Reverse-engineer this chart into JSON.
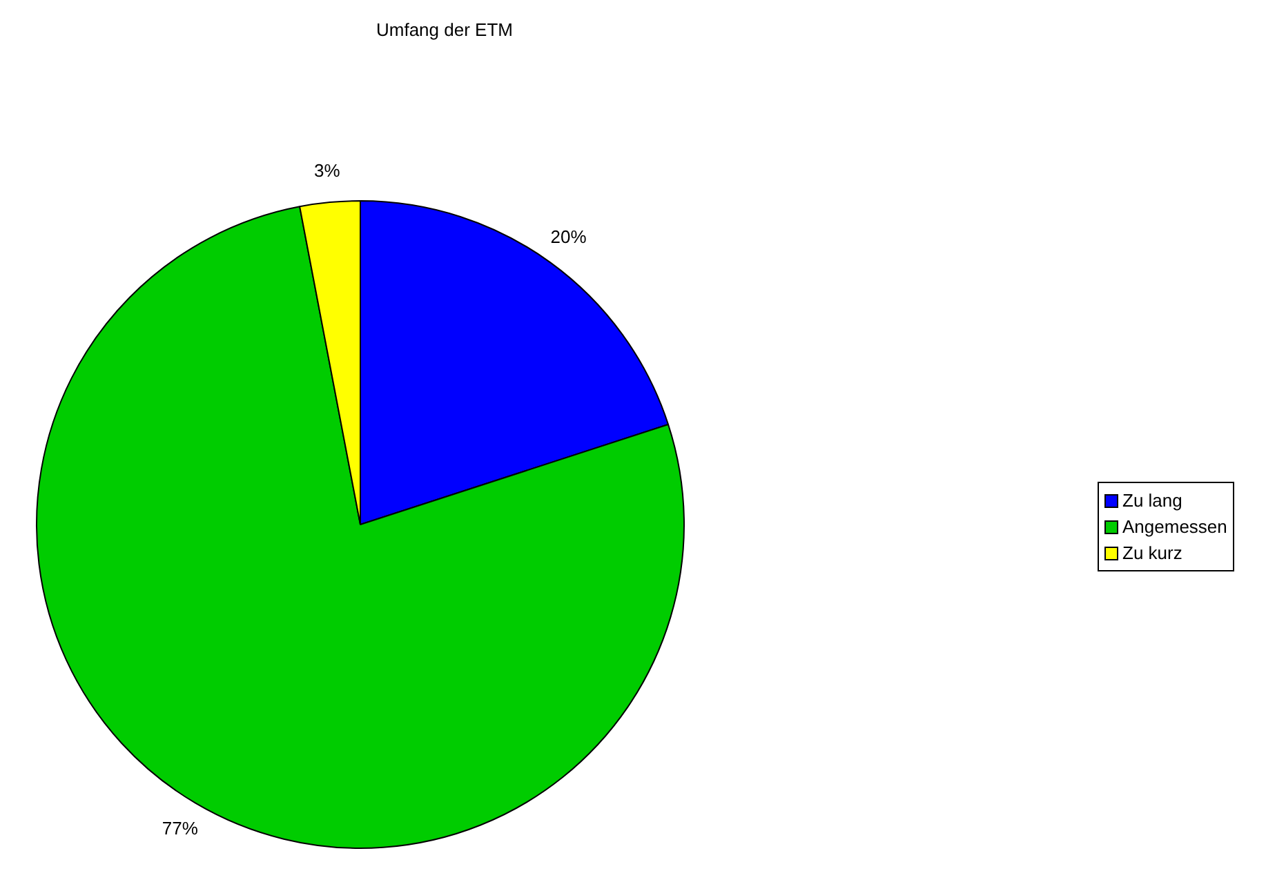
{
  "chart_data": {
    "type": "pie",
    "title": "Umfang der ETM",
    "categories": [
      "Zu lang",
      "Angemessen",
      "Zu kurz"
    ],
    "values": [
      20,
      77,
      3
    ],
    "colors": [
      "#0000ff",
      "#00cc00",
      "#ffff00"
    ],
    "value_labels": [
      "20%",
      "77%",
      "3%"
    ],
    "legend": "right"
  }
}
